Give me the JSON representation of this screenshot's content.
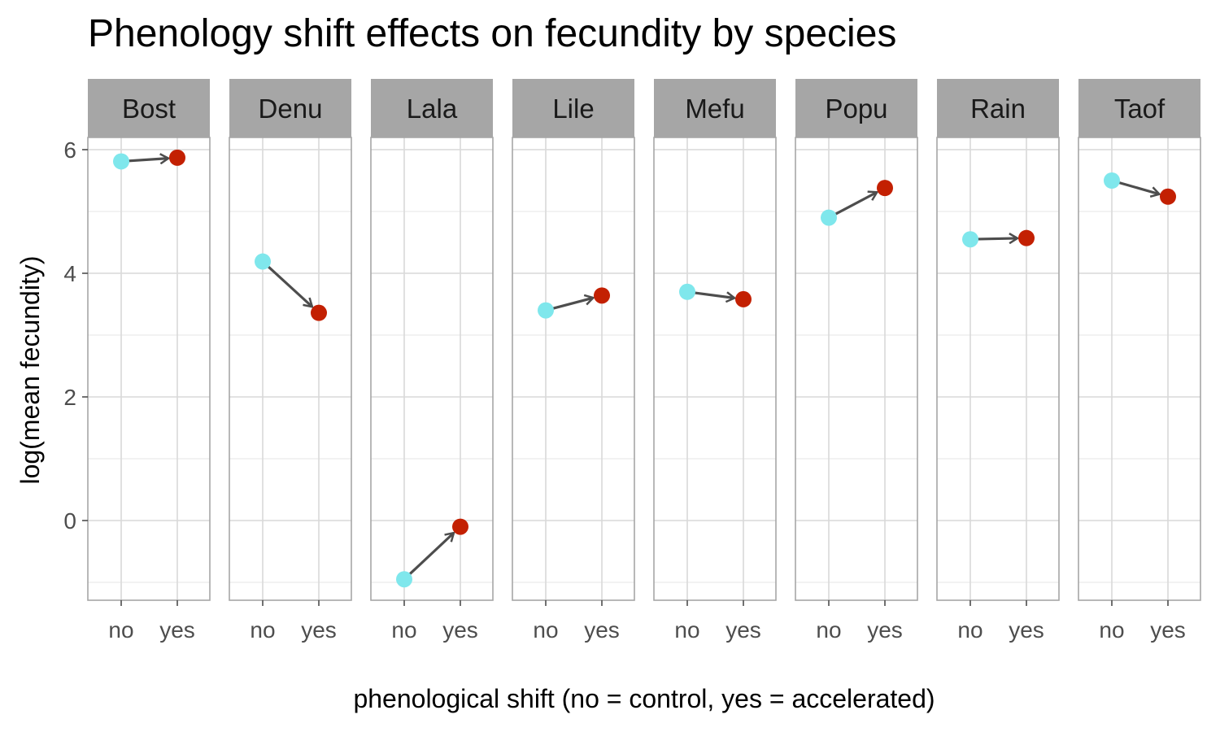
{
  "chart_data": {
    "type": "line",
    "title": "Phenology shift effects on fecundity by species",
    "xlabel": "phenological shift (no = control, yes = accelerated)",
    "ylabel": "log(mean fecundity)",
    "x_categories": [
      "no",
      "yes"
    ],
    "ylim": [
      -1.3,
      6.2
    ],
    "y_ticks": [
      0,
      2,
      4,
      6
    ],
    "grid": true,
    "facets": [
      {
        "name": "Bost",
        "no": 5.81,
        "yes": 5.87
      },
      {
        "name": "Denu",
        "no": 4.19,
        "yes": 3.36
      },
      {
        "name": "Lala",
        "no": -0.95,
        "yes": -0.1
      },
      {
        "name": "Lile",
        "no": 3.4,
        "yes": 3.64
      },
      {
        "name": "Mefu",
        "no": 3.7,
        "yes": 3.58
      },
      {
        "name": "Popu",
        "no": 4.9,
        "yes": 5.38
      },
      {
        "name": "Rain",
        "no": 4.55,
        "yes": 4.57
      },
      {
        "name": "Taof",
        "no": 5.5,
        "yes": 5.24
      }
    ],
    "colors": {
      "no": "#7fe7ec",
      "yes": "#c32002",
      "arrow": "#4d4d4d",
      "strip": "#a6a6a6",
      "grid": "#d9d9d9",
      "panel_border": "#a6a6a6"
    }
  }
}
